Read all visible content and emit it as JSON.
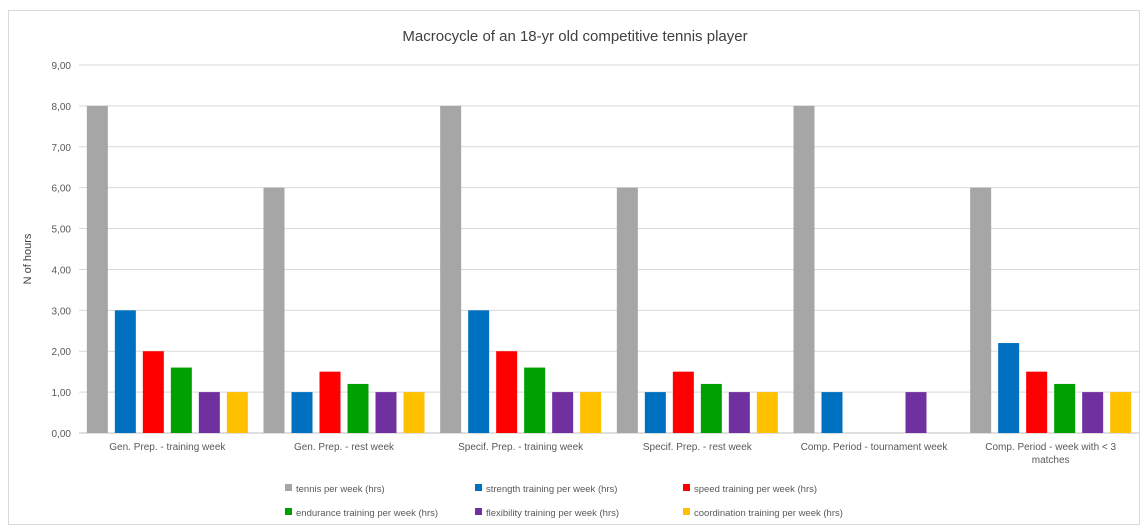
{
  "chart_data": {
    "type": "bar",
    "title": "Macrocycle of an 18-yr old competitive tennis player",
    "xlabel": "",
    "ylabel": "N of hours",
    "ylim": [
      0,
      9
    ],
    "yticks": [
      "0,00",
      "1,00",
      "2,00",
      "3,00",
      "4,00",
      "5,00",
      "6,00",
      "7,00",
      "8,00",
      "9,00"
    ],
    "grid": true,
    "legend_position": "bottom",
    "categories": [
      "Gen. Prep. - training week",
      "Gen. Prep. - rest week",
      "Specif. Prep. - training week",
      "Specif. Prep. - rest week",
      "Comp. Period - tournament week",
      "Comp. Period - week with < 3 matches"
    ],
    "series": [
      {
        "name": "tennis per week (hrs)",
        "color": "#a6a6a6",
        "values": [
          8,
          6,
          8,
          6,
          8,
          6
        ]
      },
      {
        "name": "strength training per week (hrs)",
        "color": "#0070c0",
        "values": [
          3,
          1,
          3,
          1,
          1,
          2.2
        ]
      },
      {
        "name": "speed training per week (hrs)",
        "color": "#ff0000",
        "values": [
          2,
          1.5,
          2,
          1.5,
          0,
          1.5
        ]
      },
      {
        "name": "endurance training per week (hrs)",
        "color": "#00a000",
        "values": [
          1.6,
          1.2,
          1.6,
          1.2,
          0,
          1.2
        ]
      },
      {
        "name": "flexibility training per week (hrs)",
        "color": "#7030a0",
        "values": [
          1,
          1,
          1,
          1,
          1,
          1
        ]
      },
      {
        "name": "coordination training per week (hrs)",
        "color": "#ffc000",
        "values": [
          1,
          1,
          1,
          1,
          0,
          1
        ]
      }
    ]
  }
}
